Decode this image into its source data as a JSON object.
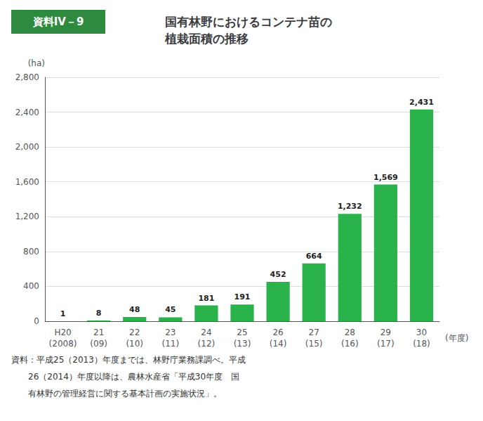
{
  "chart_data": {
    "type": "bar",
    "title": "国有林野におけるコンテナ苗の\n植栽面積の推移",
    "categories": [
      "H20\n(2008)",
      "21\n(09)",
      "22\n(10)",
      "23\n(11)",
      "24\n(12)",
      "25\n(13)",
      "26\n(14)",
      "27\n(15)",
      "28\n(16)",
      "29\n(17)",
      "30\n(18)"
    ],
    "values": [
      1,
      8,
      48,
      45,
      181,
      191,
      452,
      664,
      1232,
      1569,
      2431
    ],
    "value_labels": [
      "1",
      "8",
      "48",
      "45",
      "181",
      "191",
      "452",
      "664",
      "1,232",
      "1,569",
      "2,431"
    ],
    "data_labels": true,
    "color": "#2ab24b",
    "xlabel": "(年度)",
    "ylabel": "(ha)",
    "ylim": [
      0,
      2800
    ],
    "yticks": [
      0,
      400,
      800,
      {
        "value": 1200,
        "label": "1,200"
      },
      {
        "value": 1600,
        "label": "1,600"
      },
      {
        "value": 2000,
        "label": "2,000"
      },
      {
        "value": 2400,
        "label": "2,400"
      },
      {
        "value": 2800,
        "label": "2,800"
      }
    ],
    "grid": true,
    "annotations": [
      "資料IV－9",
      "資料：平成25（2013）年度までは、林野庁業務課調べ。平成",
      "　　26（2014）年度以降は、農林水産省「平成30年度　国",
      "　　有林野の管理経営に関する基本計画の実施状況」。"
    ]
  }
}
